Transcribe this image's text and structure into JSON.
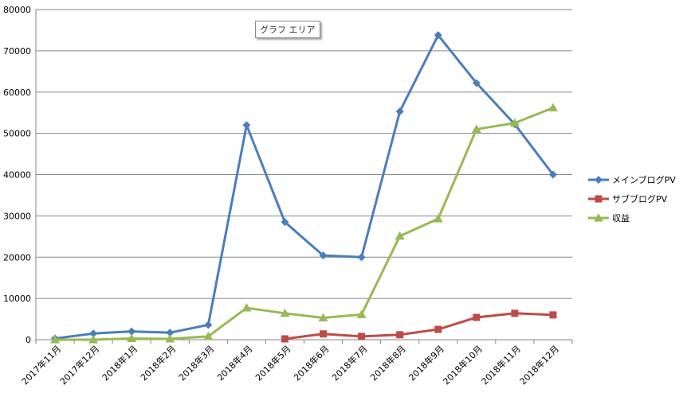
{
  "chart_data": {
    "type": "line",
    "categories": [
      "2017年11月",
      "2017年12月",
      "2018年1月",
      "2018年2月",
      "2018年3月",
      "2018年4月",
      "2018年5月",
      "2018年6月",
      "2018年7月",
      "2018年8月",
      "2018年9月",
      "2018年10月",
      "2018年11月",
      "2018年12月"
    ],
    "ylim": [
      0,
      80000
    ],
    "yticks": [
      0,
      10000,
      20000,
      30000,
      40000,
      50000,
      60000,
      70000,
      80000
    ],
    "grid": true,
    "legend": "right",
    "series": [
      {
        "name": "メインブログPV",
        "color": "#4a7ebb",
        "marker": "diamond",
        "values": [
          300,
          1500,
          2000,
          1700,
          3600,
          52000,
          28500,
          20400,
          20000,
          55300,
          73800,
          62200,
          52200,
          40000
        ]
      },
      {
        "name": "サブブログPV",
        "color": "#be4b48",
        "marker": "square",
        "values": [
          null,
          null,
          null,
          null,
          null,
          null,
          200,
          1400,
          800,
          1200,
          2500,
          5400,
          6400,
          6000
        ]
      },
      {
        "name": "収益",
        "color": "#98b954",
        "marker": "triangle",
        "values": [
          0,
          0,
          300,
          200,
          800,
          7700,
          6400,
          5300,
          6100,
          25100,
          29300,
          51000,
          52500,
          56200
        ]
      }
    ]
  },
  "tooltip": "グラフ エリア"
}
